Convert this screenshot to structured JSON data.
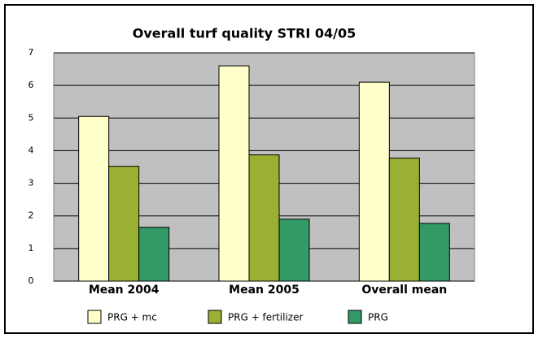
{
  "chart_data": {
    "type": "bar",
    "title": "Overall turf quality STRI 04/05",
    "categories": [
      "Mean 2004",
      "Mean 2005",
      "Overall mean"
    ],
    "series": [
      {
        "name": "PRG + mc",
        "color": "#ffffcc",
        "values": [
          5.05,
          6.6,
          6.1
        ]
      },
      {
        "name": "PRG + fertilizer",
        "color": "#99b033",
        "values": [
          3.52,
          3.87,
          3.77
        ]
      },
      {
        "name": "PRG",
        "color": "#339966",
        "values": [
          1.65,
          1.9,
          1.77
        ]
      }
    ],
    "ylim": [
      0,
      7
    ],
    "yticks": [
      0,
      1,
      2,
      3,
      4,
      5,
      6,
      7
    ],
    "grid": true,
    "legend": "bottom"
  }
}
